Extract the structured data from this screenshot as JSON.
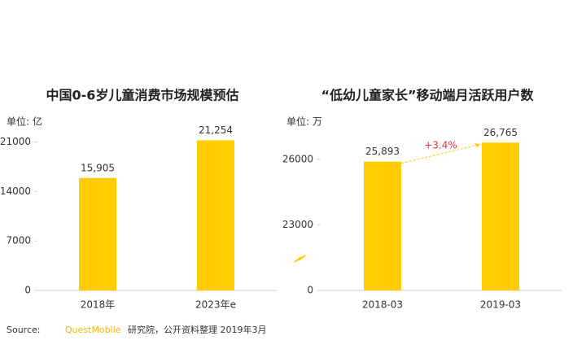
{
  "chart_data": [
    {
      "type": "bar",
      "title": "中国0-6岁儿童消费市场规模预估",
      "unit": "单位: 亿",
      "categories": [
        "2018年",
        "2023年e"
      ],
      "values": [
        15905,
        21254
      ],
      "value_labels": [
        "15,905",
        "21,254"
      ],
      "color": "#ffcc00",
      "ylim": [
        0,
        22000
      ],
      "yticks": [
        0,
        7000,
        14000,
        21000
      ]
    },
    {
      "type": "bar",
      "title": "“低幼儿童家长”移动端月活跃用户数",
      "unit": "单位: 万",
      "categories": [
        "2018-03",
        "2019-03"
      ],
      "values": [
        25893,
        26765
      ],
      "value_labels": [
        "25,893",
        "26,765"
      ],
      "color": "#ffcc00",
      "ylim": [
        0,
        27000
      ],
      "yticks": [
        0,
        23000,
        26000
      ],
      "axis_break": true,
      "annotation": "+3.4%",
      "annotation_color": "#e0333a"
    }
  ],
  "source": {
    "label": "Source:",
    "brand": "QuestMobile",
    "text": "研究院，公开资料整理 2019年3月"
  }
}
